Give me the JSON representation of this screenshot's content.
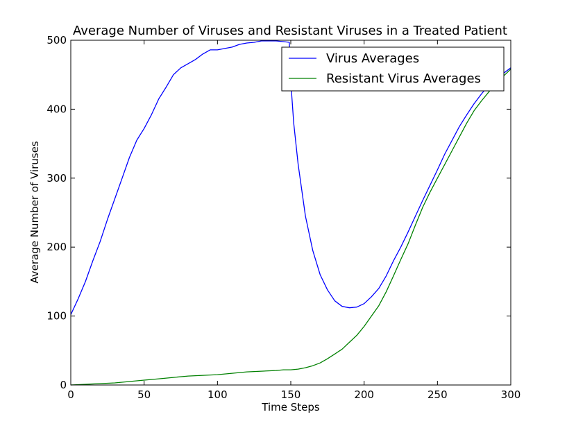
{
  "chart_data": {
    "type": "line",
    "title": "Average Number of Viruses and Resistant Viruses in a Treated Patient",
    "xlabel": "Time Steps",
    "ylabel": "Average Number of Viruses",
    "xlim": [
      0,
      300
    ],
    "ylim": [
      0,
      500
    ],
    "xticks": [
      0,
      50,
      100,
      150,
      200,
      250,
      300
    ],
    "yticks": [
      0,
      100,
      200,
      300,
      400,
      500
    ],
    "grid": false,
    "legend_position": "top-right",
    "series": [
      {
        "name": "Virus Averages",
        "color": "#0000ff",
        "x": [
          0,
          5,
          10,
          15,
          20,
          25,
          30,
          35,
          40,
          45,
          50,
          55,
          60,
          65,
          70,
          75,
          80,
          85,
          90,
          95,
          100,
          105,
          110,
          115,
          120,
          125,
          130,
          135,
          140,
          145,
          149,
          150,
          152,
          155,
          160,
          165,
          170,
          175,
          180,
          185,
          190,
          195,
          200,
          205,
          210,
          215,
          220,
          225,
          230,
          235,
          240,
          245,
          250,
          255,
          260,
          265,
          270,
          275,
          280,
          285,
          290,
          295,
          300
        ],
        "y": [
          102,
          125,
          150,
          180,
          208,
          240,
          270,
          300,
          330,
          355,
          372,
          392,
          415,
          432,
          450,
          460,
          466,
          472,
          480,
          486,
          486,
          488,
          490,
          494,
          496,
          497,
          499,
          499,
          499,
          498,
          497,
          440,
          380,
          320,
          245,
          195,
          160,
          138,
          122,
          114,
          112,
          113,
          118,
          128,
          140,
          158,
          180,
          200,
          222,
          245,
          268,
          290,
          312,
          335,
          355,
          375,
          392,
          408,
          422,
          435,
          445,
          452,
          460
        ]
      },
      {
        "name": "Resistant Virus Averages",
        "color": "#008000",
        "x": [
          0,
          10,
          20,
          30,
          40,
          50,
          60,
          70,
          80,
          90,
          100,
          110,
          120,
          130,
          140,
          145,
          150,
          155,
          160,
          165,
          170,
          175,
          180,
          185,
          190,
          195,
          200,
          205,
          210,
          215,
          220,
          225,
          230,
          235,
          240,
          245,
          250,
          255,
          260,
          265,
          270,
          275,
          280,
          285,
          290,
          295,
          300
        ],
        "y": [
          0,
          1,
          2,
          3,
          5,
          7,
          9,
          11,
          13,
          14,
          15,
          17,
          19,
          20,
          21,
          22,
          22,
          23,
          25,
          28,
          32,
          38,
          45,
          52,
          62,
          72,
          85,
          100,
          115,
          135,
          158,
          182,
          205,
          232,
          258,
          280,
          300,
          320,
          340,
          360,
          380,
          398,
          412,
          425,
          438,
          448,
          458
        ]
      }
    ]
  }
}
